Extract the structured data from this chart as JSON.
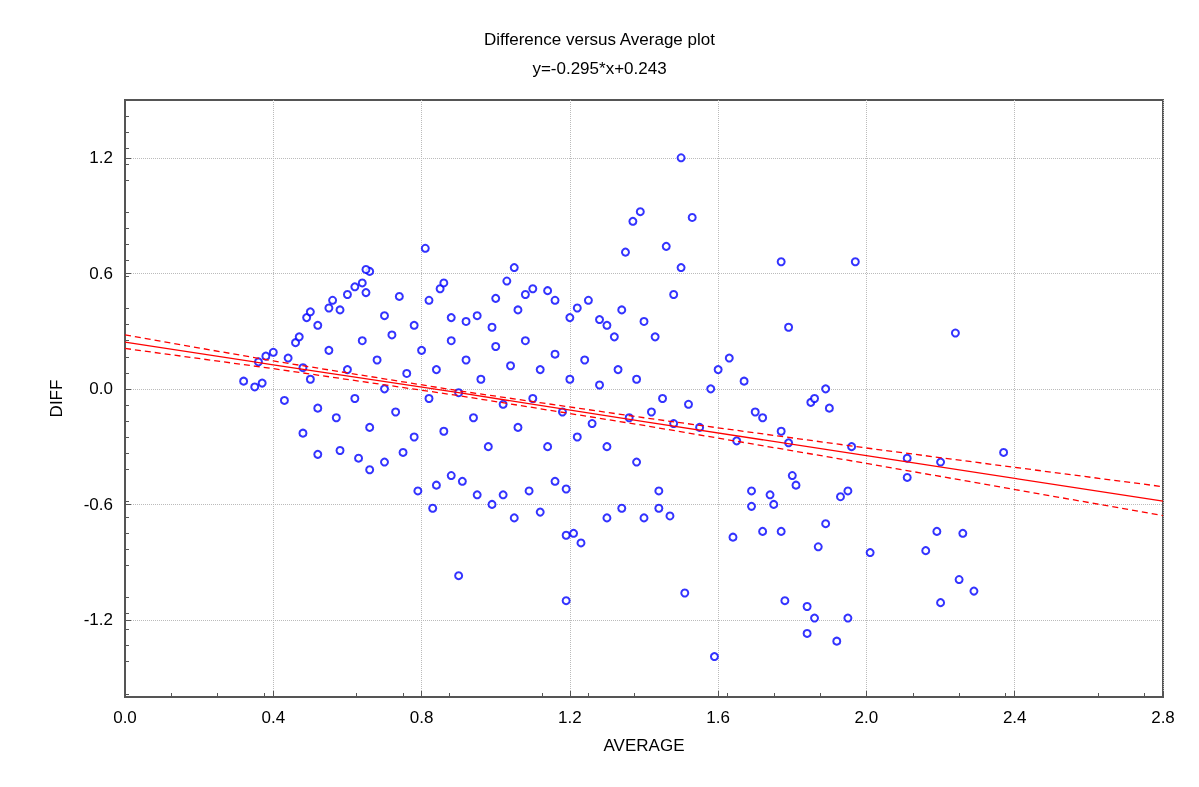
{
  "chart_data": {
    "type": "scatter",
    "title": "Difference versus Average plot",
    "subtitle": "y=-0.295*x+0.243",
    "xlabel": "AVERAGE",
    "ylabel": "DIFF",
    "xlim": [
      0,
      2.8
    ],
    "xticks": [
      {
        "value": 0,
        "label": "0.0"
      },
      0.4,
      0.8,
      1.2,
      1.6,
      {
        "value": 2,
        "label": "2.0"
      },
      2.4,
      2.8
    ],
    "ylim": [
      -1.6,
      1.5
    ],
    "yticks": [
      -1.2,
      -0.6,
      {
        "value": 0,
        "label": "0.0"
      },
      0.6,
      1.2
    ],
    "grid": true,
    "marker": "circle",
    "series": [
      {
        "color": "#0000ff",
        "x": [
          0.32,
          0.35,
          0.37,
          0.36,
          0.38,
          0.4,
          0.43,
          0.44,
          0.46,
          0.47,
          0.48,
          0.49,
          0.5,
          0.52,
          0.55,
          0.56,
          0.58,
          0.6,
          0.62,
          0.64,
          0.65,
          0.66,
          0.7,
          0.74,
          0.78,
          0.82,
          0.85,
          0.86,
          0.88,
          0.92,
          0.95,
          0.99,
          1.0,
          1.03,
          1.06,
          1.08,
          1.1,
          1.14,
          1.16,
          1.2,
          1.22,
          1.25,
          1.28,
          1.3,
          1.32,
          1.34,
          1.4,
          1.43,
          0.5,
          0.52,
          0.55,
          0.57,
          0.6,
          0.62,
          0.64,
          0.66,
          0.68,
          0.7,
          0.72,
          0.73,
          0.76,
          0.78,
          0.8,
          0.82,
          0.84,
          0.86,
          0.88,
          0.9,
          0.92,
          0.94,
          0.96,
          0.98,
          1.0,
          1.02,
          1.04,
          1.06,
          1.08,
          1.1,
          1.12,
          1.14,
          1.16,
          1.18,
          1.2,
          1.22,
          1.24,
          1.26,
          1.28,
          1.3,
          1.33,
          1.36,
          1.38,
          1.42,
          1.45,
          1.48,
          1.52,
          1.55,
          1.58,
          0.48,
          0.52,
          0.58,
          0.63,
          0.66,
          0.7,
          0.75,
          0.79,
          0.83,
          0.84,
          0.88,
          0.91,
          0.95,
          0.99,
          1.02,
          1.05,
          1.09,
          1.12,
          1.16,
          1.19,
          1.21,
          1.23,
          1.3,
          1.34,
          1.4,
          1.44,
          1.47,
          1.44,
          1.19,
          1.38,
          1.6,
          1.63,
          1.65,
          1.67,
          1.7,
          1.72,
          1.69,
          1.69,
          1.74,
          1.75,
          1.77,
          1.79,
          1.8,
          1.81,
          1.85,
          1.86,
          1.89,
          1.9,
          1.95,
          1.93,
          1.96,
          1.72,
          1.77,
          1.5,
          1.37,
          1.39,
          1.53,
          1.46,
          1.35,
          1.5,
          1.77,
          1.97,
          1.48,
          1.79,
          2.24,
          0.81,
          0.65,
          1.05,
          0.9,
          1.19,
          1.51,
          1.59,
          1.92,
          1.95,
          2.25,
          2.29,
          2.2,
          1.78,
          1.84,
          1.86,
          1.84,
          2.01,
          2.19,
          2.26,
          2.16,
          1.89,
          1.87,
          1.64,
          2.37,
          2.2,
          2.11,
          2.11
        ],
        "values": [
          0.04,
          0.01,
          0.03,
          0.14,
          0.17,
          0.19,
          -0.06,
          0.16,
          0.24,
          0.27,
          0.11,
          0.37,
          0.4,
          0.33,
          0.42,
          0.46,
          0.41,
          0.49,
          0.53,
          0.55,
          0.5,
          0.61,
          0.38,
          0.48,
          0.33,
          0.46,
          0.52,
          0.55,
          0.37,
          0.35,
          0.38,
          0.32,
          0.47,
          0.56,
          0.41,
          0.49,
          0.52,
          0.51,
          0.46,
          0.37,
          0.42,
          0.46,
          0.36,
          0.33,
          0.27,
          0.41,
          0.35,
          0.27,
          0.05,
          -0.1,
          0.2,
          -0.15,
          0.1,
          -0.05,
          0.25,
          -0.2,
          0.15,
          0.0,
          0.28,
          -0.12,
          0.08,
          -0.25,
          0.2,
          -0.05,
          0.1,
          -0.22,
          0.25,
          -0.02,
          0.15,
          -0.15,
          0.05,
          -0.3,
          0.22,
          -0.08,
          0.12,
          -0.2,
          0.25,
          -0.05,
          0.1,
          -0.3,
          0.18,
          -0.12,
          0.05,
          -0.25,
          0.15,
          -0.18,
          0.02,
          -0.3,
          0.1,
          -0.15,
          0.05,
          -0.12,
          -0.05,
          -0.18,
          -0.08,
          -0.2,
          0.0,
          -0.23,
          -0.34,
          -0.32,
          -0.36,
          -0.42,
          -0.38,
          -0.33,
          -0.53,
          -0.62,
          -0.5,
          -0.45,
          -0.48,
          -0.55,
          -0.6,
          -0.55,
          -0.67,
          -0.53,
          -0.64,
          -0.48,
          -0.76,
          -0.75,
          -0.8,
          -0.67,
          -0.62,
          -0.67,
          -0.62,
          -0.66,
          -0.53,
          -0.52,
          -0.38,
          0.1,
          0.16,
          -0.27,
          0.04,
          -0.12,
          -0.15,
          -0.53,
          -0.61,
          -0.55,
          -0.6,
          -0.22,
          -0.28,
          -0.45,
          -0.5,
          -0.07,
          -0.05,
          0.0,
          -0.1,
          -0.53,
          -0.56,
          -0.3,
          -0.74,
          -0.74,
          1.2,
          0.87,
          0.92,
          0.89,
          0.74,
          0.71,
          0.63,
          0.66,
          0.66,
          0.49,
          0.32,
          0.29,
          0.73,
          0.62,
          0.63,
          -0.97,
          -1.1,
          -1.06,
          -1.39,
          -1.31,
          -1.19,
          -0.99,
          -1.05,
          -1.11,
          -1.1,
          -1.13,
          -1.19,
          -1.27,
          -0.85,
          -0.74,
          -0.75,
          -0.84,
          -0.7,
          -0.82,
          -0.77,
          -0.33,
          -0.38,
          -0.36,
          -0.46
        ]
      },
      {
        "type": "line",
        "color": "#ff0000",
        "line_style": "solid",
        "marker": "none",
        "x": [
          0,
          0.4,
          0.9,
          1.4,
          2.0,
          2.8
        ],
        "values": [
          0.243,
          0.125,
          -0.02,
          -0.17,
          -0.347,
          -0.583
        ]
      },
      {
        "type": "line",
        "color": "#ff0000",
        "line_style": "dashed",
        "marker": "none",
        "x": [
          0,
          0.4,
          0.9,
          1.4,
          2.0,
          2.8
        ],
        "values": [
          0.21,
          0.105,
          -0.035,
          -0.19,
          -0.387,
          -0.658
        ]
      },
      {
        "type": "line",
        "color": "#ff0000",
        "line_style": "dashed",
        "marker": "none",
        "x": [
          0,
          0.4,
          0.9,
          1.4,
          2.0,
          2.8
        ],
        "values": [
          0.28,
          0.145,
          -0.01,
          -0.15,
          -0.307,
          -0.508
        ]
      }
    ]
  }
}
